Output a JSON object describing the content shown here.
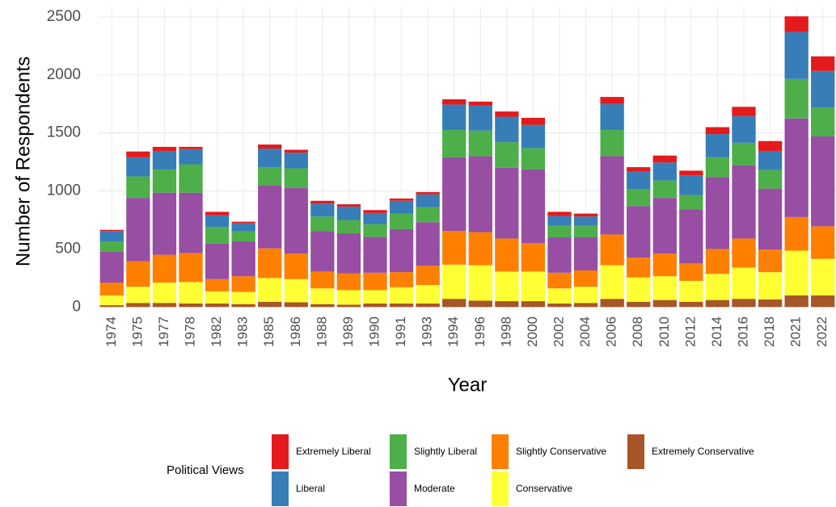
{
  "chart_data": {
    "type": "stacked_bar",
    "x_label": "Year",
    "y_label": "Number of Respondents",
    "legend_title": "Political Views",
    "legend_position": "bottom",
    "categories": [
      "1974",
      "1975",
      "1977",
      "1978",
      "1982",
      "1983",
      "1985",
      "1986",
      "1988",
      "1989",
      "1990",
      "1991",
      "1993",
      "1994",
      "1996",
      "1998",
      "2000",
      "2002",
      "2004",
      "2006",
      "2008",
      "2010",
      "2012",
      "2014",
      "2016",
      "2018",
      "2021",
      "2022"
    ],
    "series": [
      {
        "name": "Extremely Liberal",
        "color": "#e41a1c",
        "values": [
          10,
          50,
          35,
          20,
          30,
          15,
          35,
          25,
          25,
          20,
          25,
          20,
          20,
          45,
          35,
          45,
          60,
          35,
          25,
          60,
          40,
          60,
          40,
          60,
          80,
          85,
          135,
          125
        ]
      },
      {
        "name": "Liberal",
        "color": "#377eb8",
        "values": [
          90,
          165,
          160,
          130,
          100,
          70,
          160,
          135,
          110,
          115,
          95,
          110,
          110,
          220,
          215,
          220,
          200,
          85,
          80,
          225,
          150,
          155,
          170,
          200,
          230,
          165,
          405,
          315
        ]
      },
      {
        "name": "Slightly Liberal",
        "color": "#4daf4a",
        "values": [
          85,
          185,
          200,
          245,
          145,
          85,
          155,
          170,
          125,
          115,
          110,
          135,
          130,
          235,
          220,
          220,
          185,
          100,
          100,
          225,
          145,
          150,
          125,
          170,
          195,
          160,
          340,
          250
        ]
      },
      {
        "name": "Moderate",
        "color": "#984ea3",
        "values": [
          270,
          545,
          535,
          520,
          305,
          300,
          545,
          565,
          350,
          345,
          310,
          370,
          375,
          635,
          655,
          610,
          635,
          305,
          285,
          675,
          445,
          480,
          465,
          620,
          630,
          525,
          850,
          775
        ]
      },
      {
        "name": "Slightly Conservative",
        "color": "#ff7f00",
        "values": [
          110,
          220,
          240,
          250,
          105,
          135,
          255,
          220,
          145,
          145,
          150,
          130,
          165,
          290,
          285,
          285,
          245,
          135,
          140,
          265,
          170,
          195,
          150,
          215,
          250,
          195,
          290,
          280
        ]
      },
      {
        "name": "Conservative",
        "color": "#ffff33",
        "values": [
          85,
          140,
          175,
          185,
          105,
          105,
          205,
          200,
          135,
          125,
          115,
          140,
          160,
          295,
          305,
          255,
          255,
          130,
          140,
          290,
          210,
          205,
          180,
          225,
          270,
          235,
          385,
          315
        ]
      },
      {
        "name": "Extremely Conservative",
        "color": "#a65628",
        "values": [
          15,
          35,
          35,
          30,
          30,
          25,
          45,
          40,
          25,
          20,
          30,
          30,
          30,
          70,
          55,
          50,
          50,
          30,
          35,
          70,
          45,
          60,
          45,
          60,
          70,
          65,
          100,
          100
        ]
      }
    ],
    "ylim": [
      -40,
      2590
    ],
    "yticks": [
      0,
      500,
      1000,
      1500,
      2000,
      2500
    ],
    "grid": true
  }
}
